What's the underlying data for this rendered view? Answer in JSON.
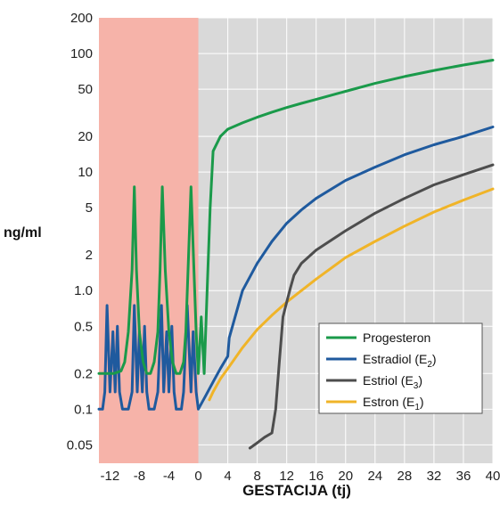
{
  "chart_data": {
    "type": "line",
    "ylabel": "ng/ml",
    "xlabel": "GESTACIJA (tj)",
    "y_scale": "log",
    "ylim": [
      0.035,
      200
    ],
    "xlim": [
      -13.5,
      40
    ],
    "xticks": [
      -12,
      -8,
      -4,
      0,
      4,
      8,
      12,
      16,
      20,
      24,
      28,
      32,
      36,
      40
    ],
    "xtick_labels": [
      "-12",
      "-8",
      "-4",
      "0",
      "4",
      "8",
      "12",
      "16",
      "20",
      "24",
      "28",
      "32",
      "36",
      "40"
    ],
    "yticks": [
      0.05,
      0.1,
      0.2,
      0.5,
      1.0,
      2,
      5,
      10,
      20,
      50,
      100,
      200
    ],
    "ytick_labels": [
      "0.05",
      "0.1",
      "0.2",
      "0.5",
      "1.0",
      "2",
      "5",
      "10",
      "20",
      "50",
      "100",
      "200"
    ],
    "shaded_region": {
      "x": [
        -13.5,
        0
      ],
      "color": "#f6b3a9"
    },
    "plot_background": "#d9d9d9",
    "grid": true,
    "legend_position": "lower-right",
    "series": [
      {
        "name": "Progesteron",
        "color": "#1a9a4a",
        "x": [
          -13.5,
          -12.5,
          -11.5,
          -10.5,
          -10,
          -9.5,
          -9,
          -8.7,
          -8.4,
          -8,
          -7.5,
          -7,
          -6.5,
          -6,
          -5.5,
          -5.2,
          -4.9,
          -4.5,
          -4,
          -3.5,
          -3,
          -2.5,
          -2,
          -1.7,
          -1.4,
          -1,
          -0.6,
          -0.3,
          0,
          0.4,
          0.8,
          1.2,
          1.6,
          2.0,
          3,
          4,
          6,
          8,
          10,
          12,
          14,
          16,
          20,
          24,
          28,
          32,
          36,
          40
        ],
        "y": [
          0.2,
          0.2,
          0.2,
          0.21,
          0.25,
          0.45,
          1.5,
          7.5,
          1.5,
          0.45,
          0.25,
          0.2,
          0.2,
          0.25,
          0.45,
          1.5,
          7.5,
          1.5,
          0.45,
          0.25,
          0.2,
          0.2,
          0.25,
          0.45,
          1.5,
          7.5,
          1.5,
          0.45,
          0.2,
          0.6,
          0.2,
          1.0,
          5,
          15,
          20,
          23,
          26,
          29,
          32,
          35,
          38,
          41,
          48,
          56,
          64,
          72,
          80,
          88
        ]
      },
      {
        "name": "Estradiol (E2)",
        "label_main": "Estradiol (E",
        "label_sub": "2",
        "label_end": ")",
        "color": "#1f5a9e",
        "x": [
          -13.5,
          -13,
          -12.7,
          -12.4,
          -12,
          -11.6,
          -11.3,
          -11,
          -10.7,
          -10.3,
          -10,
          -9.5,
          -9,
          -8.7,
          -8.3,
          -8,
          -7.6,
          -7.3,
          -7,
          -6.7,
          -6.3,
          -6,
          -5.5,
          -5,
          -4.7,
          -4.3,
          -4,
          -3.6,
          -3.3,
          -3,
          -2.7,
          -2.3,
          -2,
          -1.5,
          -1,
          -0.7,
          -0.3,
          0,
          1,
          2,
          3,
          4,
          4.2,
          6,
          8,
          10,
          12,
          14,
          16,
          20,
          24,
          28,
          32,
          36,
          40
        ],
        "y": [
          0.1,
          0.1,
          0.14,
          0.75,
          0.14,
          0.45,
          0.14,
          0.5,
          0.14,
          0.1,
          0.1,
          0.1,
          0.14,
          0.75,
          0.14,
          0.45,
          0.14,
          0.5,
          0.14,
          0.1,
          0.1,
          0.1,
          0.14,
          0.75,
          0.14,
          0.45,
          0.14,
          0.5,
          0.14,
          0.1,
          0.1,
          0.1,
          0.14,
          0.75,
          0.14,
          0.45,
          0.14,
          0.1,
          0.13,
          0.17,
          0.22,
          0.28,
          0.4,
          1.0,
          1.7,
          2.6,
          3.7,
          4.8,
          6,
          8.5,
          11,
          14,
          17,
          20,
          24
        ]
      },
      {
        "name": "Estriol (E3)",
        "label_main": "Estriol (E",
        "label_sub": "3",
        "label_end": ")",
        "color": "#4d4d4d",
        "x": [
          7,
          8,
          9,
          10,
          10.5,
          11,
          11.5,
          12,
          12.5,
          13,
          14,
          16,
          20,
          24,
          28,
          32,
          36,
          40
        ],
        "y": [
          0.047,
          0.052,
          0.058,
          0.063,
          0.1,
          0.25,
          0.6,
          0.8,
          1.05,
          1.35,
          1.7,
          2.2,
          3.2,
          4.5,
          6,
          7.8,
          9.5,
          11.5
        ]
      },
      {
        "name": "Estron (E1)",
        "label_main": "Estron   (E",
        "label_sub": "1",
        "label_end": ")",
        "color": "#f0b428",
        "x": [
          1.5,
          2,
          3,
          4,
          6,
          8,
          10,
          12,
          14,
          16,
          20,
          24,
          28,
          32,
          36,
          40
        ],
        "y": [
          0.12,
          0.14,
          0.18,
          0.22,
          0.33,
          0.47,
          0.62,
          0.8,
          1.0,
          1.25,
          1.9,
          2.6,
          3.5,
          4.6,
          5.8,
          7.2
        ]
      }
    ]
  }
}
